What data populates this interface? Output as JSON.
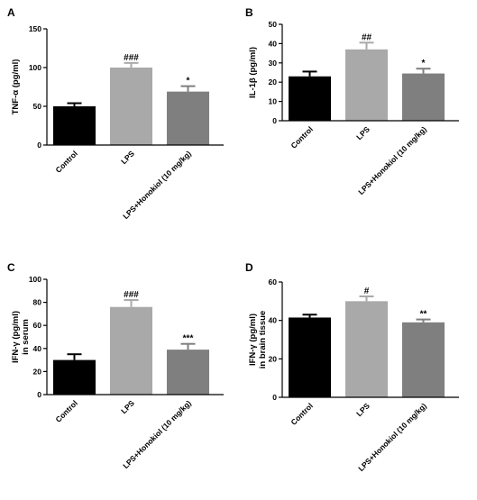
{
  "colors": {
    "control": "#000000",
    "lps": "#a9a9a9",
    "honokiol": "#7f7f7f",
    "axis": "#000000"
  },
  "chart_data": [
    {
      "type": "bar",
      "panel": "A",
      "ylabel": "TNF-α (pg/ml)",
      "ylabel2": "",
      "ylim": [
        0,
        150
      ],
      "yticks": [
        0,
        50,
        100,
        150
      ],
      "categories": [
        "Control",
        "LPS",
        "LPS+Honokiol (10 mg/kg)"
      ],
      "values": [
        50,
        100,
        69
      ],
      "errors": [
        4,
        6,
        7
      ],
      "annotations": [
        "",
        "###",
        "*"
      ]
    },
    {
      "type": "bar",
      "panel": "B",
      "ylabel": "IL-1β (pg/ml)",
      "ylabel2": "",
      "ylim": [
        0,
        50
      ],
      "yticks": [
        0,
        10,
        20,
        30,
        40,
        50
      ],
      "categories": [
        "Control",
        "LPS",
        "LPS+Honokiol (10 mg/kg)"
      ],
      "values": [
        23,
        37,
        24.5
      ],
      "errors": [
        2.5,
        3.5,
        2.5
      ],
      "annotations": [
        "",
        "##",
        "*"
      ]
    },
    {
      "type": "bar",
      "panel": "C",
      "ylabel": "IFN-γ (pg/ml)",
      "ylabel2": "in serum",
      "ylim": [
        0,
        100
      ],
      "yticks": [
        0,
        20,
        40,
        60,
        80,
        100
      ],
      "categories": [
        "Control",
        "LPS",
        "LPS+Honokiol (10 mg/kg)"
      ],
      "values": [
        30,
        76,
        39
      ],
      "errors": [
        5,
        6,
        5
      ],
      "annotations": [
        "",
        "###",
        "***"
      ]
    },
    {
      "type": "bar",
      "panel": "D",
      "ylabel": "IFN-γ (pg/ml)",
      "ylabel2": "in brain tissue",
      "ylim": [
        0,
        60
      ],
      "yticks": [
        0,
        20,
        40,
        60
      ],
      "categories": [
        "Control",
        "LPS",
        "LPS+Honokiol (10 mg/kg)"
      ],
      "values": [
        41.5,
        50,
        39
      ],
      "errors": [
        1.5,
        2.5,
        1.5
      ],
      "annotations": [
        "",
        "#",
        "**"
      ]
    }
  ]
}
